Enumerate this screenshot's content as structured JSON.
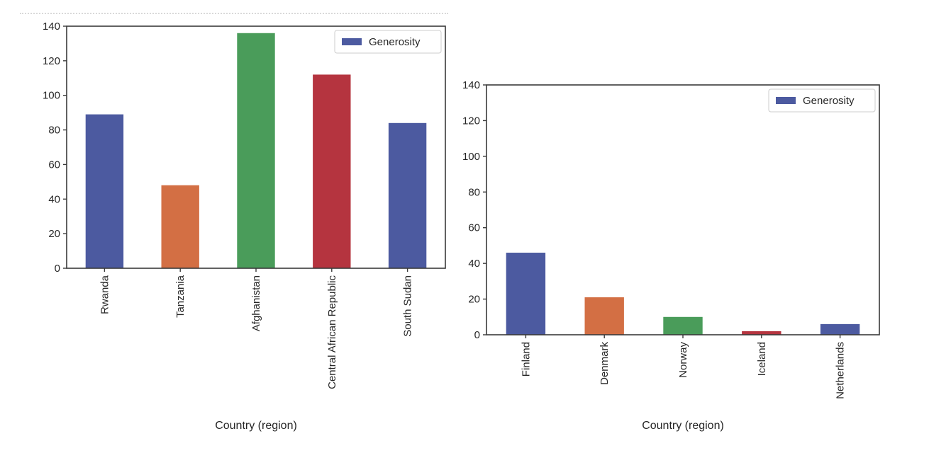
{
  "chart_data": [
    {
      "type": "bar",
      "categories": [
        "Rwanda",
        "Tanzania",
        "Afghanistan",
        "Central African Republic",
        "South Sudan"
      ],
      "series": [
        {
          "name": "Generosity",
          "values": [
            89,
            48,
            136,
            112,
            84
          ]
        }
      ],
      "bar_colors": [
        "#4c5aa0",
        "#d36f44",
        "#4a9c5a",
        "#b5343f",
        "#4c5aa0"
      ],
      "xlabel": "Country (region)",
      "ylabel": "",
      "ylim": [
        0,
        140
      ],
      "yticks": [
        0,
        20,
        40,
        60,
        80,
        100,
        120,
        140
      ],
      "legend": "top-right",
      "grid": false
    },
    {
      "type": "bar",
      "categories": [
        "Finland",
        "Denmark",
        "Norway",
        "Iceland",
        "Netherlands"
      ],
      "series": [
        {
          "name": "Generosity",
          "values": [
            46,
            21,
            10,
            2,
            6
          ]
        }
      ],
      "bar_colors": [
        "#4c5aa0",
        "#d36f44",
        "#4a9c5a",
        "#b5343f",
        "#4c5aa0"
      ],
      "xlabel": "Country (region)",
      "ylabel": "",
      "ylim": [
        0,
        140
      ],
      "yticks": [
        0,
        20,
        40,
        60,
        80,
        100,
        120,
        140
      ],
      "legend": "top-right",
      "grid": false
    }
  ],
  "legend_color": "#4c5aa0"
}
